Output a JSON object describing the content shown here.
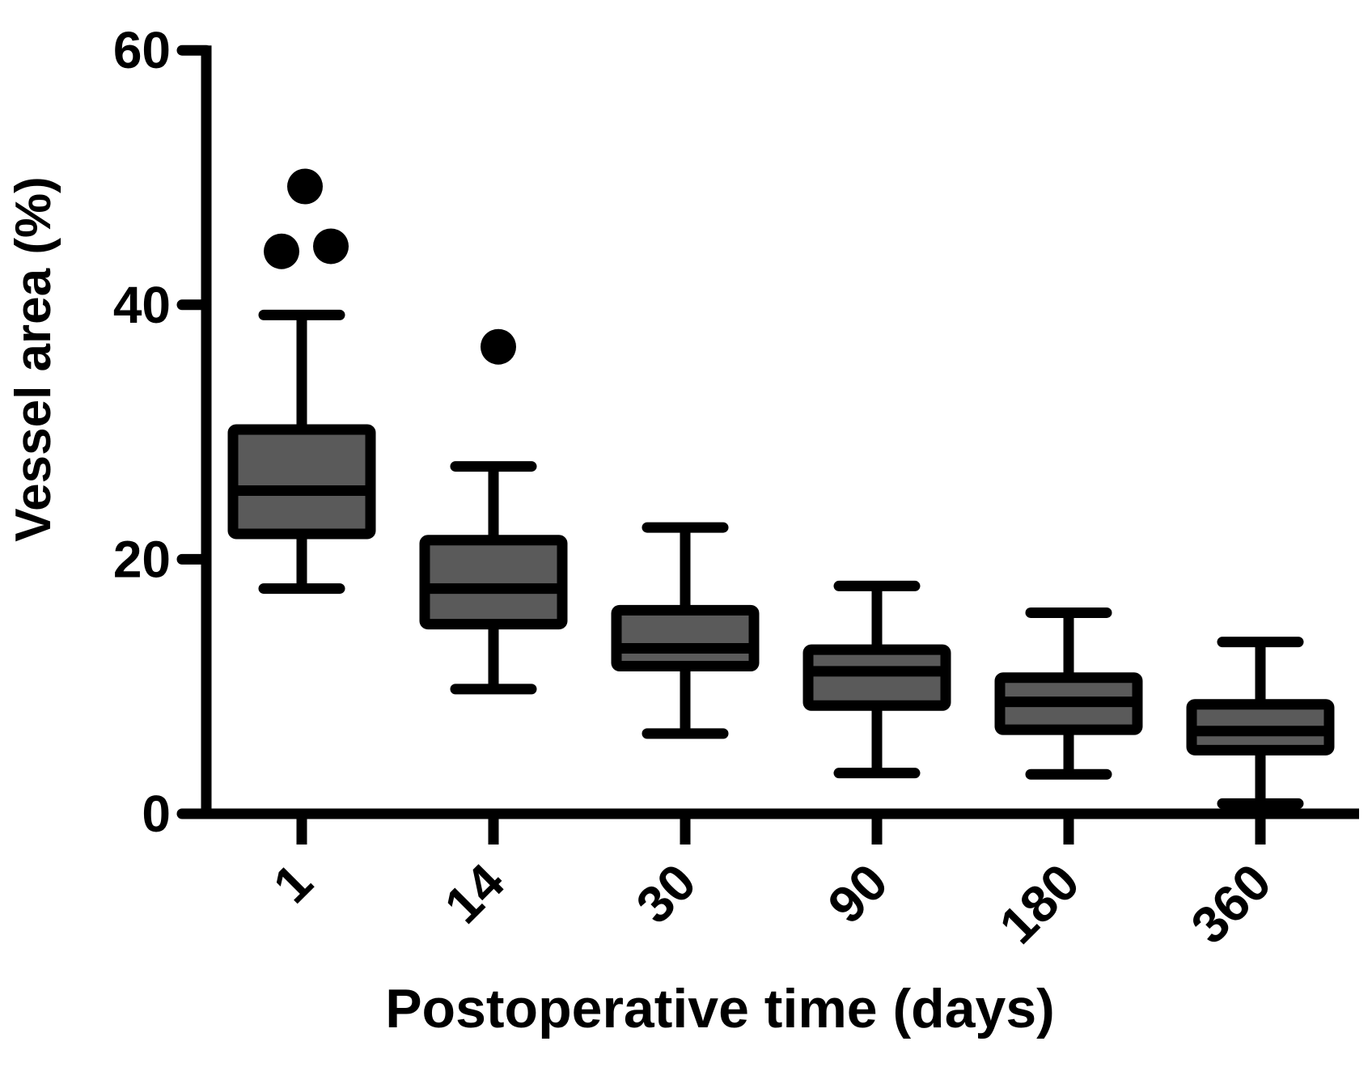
{
  "figure": {
    "background": "#ffffff"
  },
  "chart_data": {
    "type": "box",
    "title": "",
    "xlabel": "Postoperative time (days)",
    "ylabel": "Vessel area (%)",
    "categories": [
      "1",
      "14",
      "30",
      "90",
      "180",
      "360"
    ],
    "ylim": [
      0,
      60
    ],
    "yticks": [
      0,
      20,
      40,
      60
    ],
    "grid": false,
    "legend": "none",
    "box_fill": "#5a5a5a",
    "line_color": "#000000",
    "series": [
      {
        "category": "1",
        "whisker_low": 17.7,
        "q1": 22.0,
        "median": 25.4,
        "q3": 30.2,
        "whisker_high": 39.2,
        "outliers": [
          {
            "value": 44.2,
            "dx": -25
          },
          {
            "value": 44.6,
            "dx": 36
          },
          {
            "value": 49.3,
            "dx": 4
          }
        ]
      },
      {
        "category": "14",
        "whisker_low": 9.8,
        "q1": 14.9,
        "median": 17.7,
        "q3": 21.5,
        "whisker_high": 27.3,
        "outliers": [
          {
            "value": 36.7,
            "dx": 6
          }
        ]
      },
      {
        "category": "30",
        "whisker_low": 6.3,
        "q1": 11.6,
        "median": 13.0,
        "q3": 16.0,
        "whisker_high": 22.5,
        "outliers": []
      },
      {
        "category": "90",
        "whisker_low": 3.2,
        "q1": 8.5,
        "median": 11.2,
        "q3": 12.9,
        "whisker_high": 17.9,
        "outliers": []
      },
      {
        "category": "180",
        "whisker_low": 3.1,
        "q1": 6.6,
        "median": 8.8,
        "q3": 10.7,
        "whisker_high": 15.8,
        "outliers": []
      },
      {
        "category": "360",
        "whisker_low": 0.8,
        "q1": 5.0,
        "median": 6.5,
        "q3": 8.6,
        "whisker_high": 13.5,
        "outliers": []
      }
    ]
  }
}
